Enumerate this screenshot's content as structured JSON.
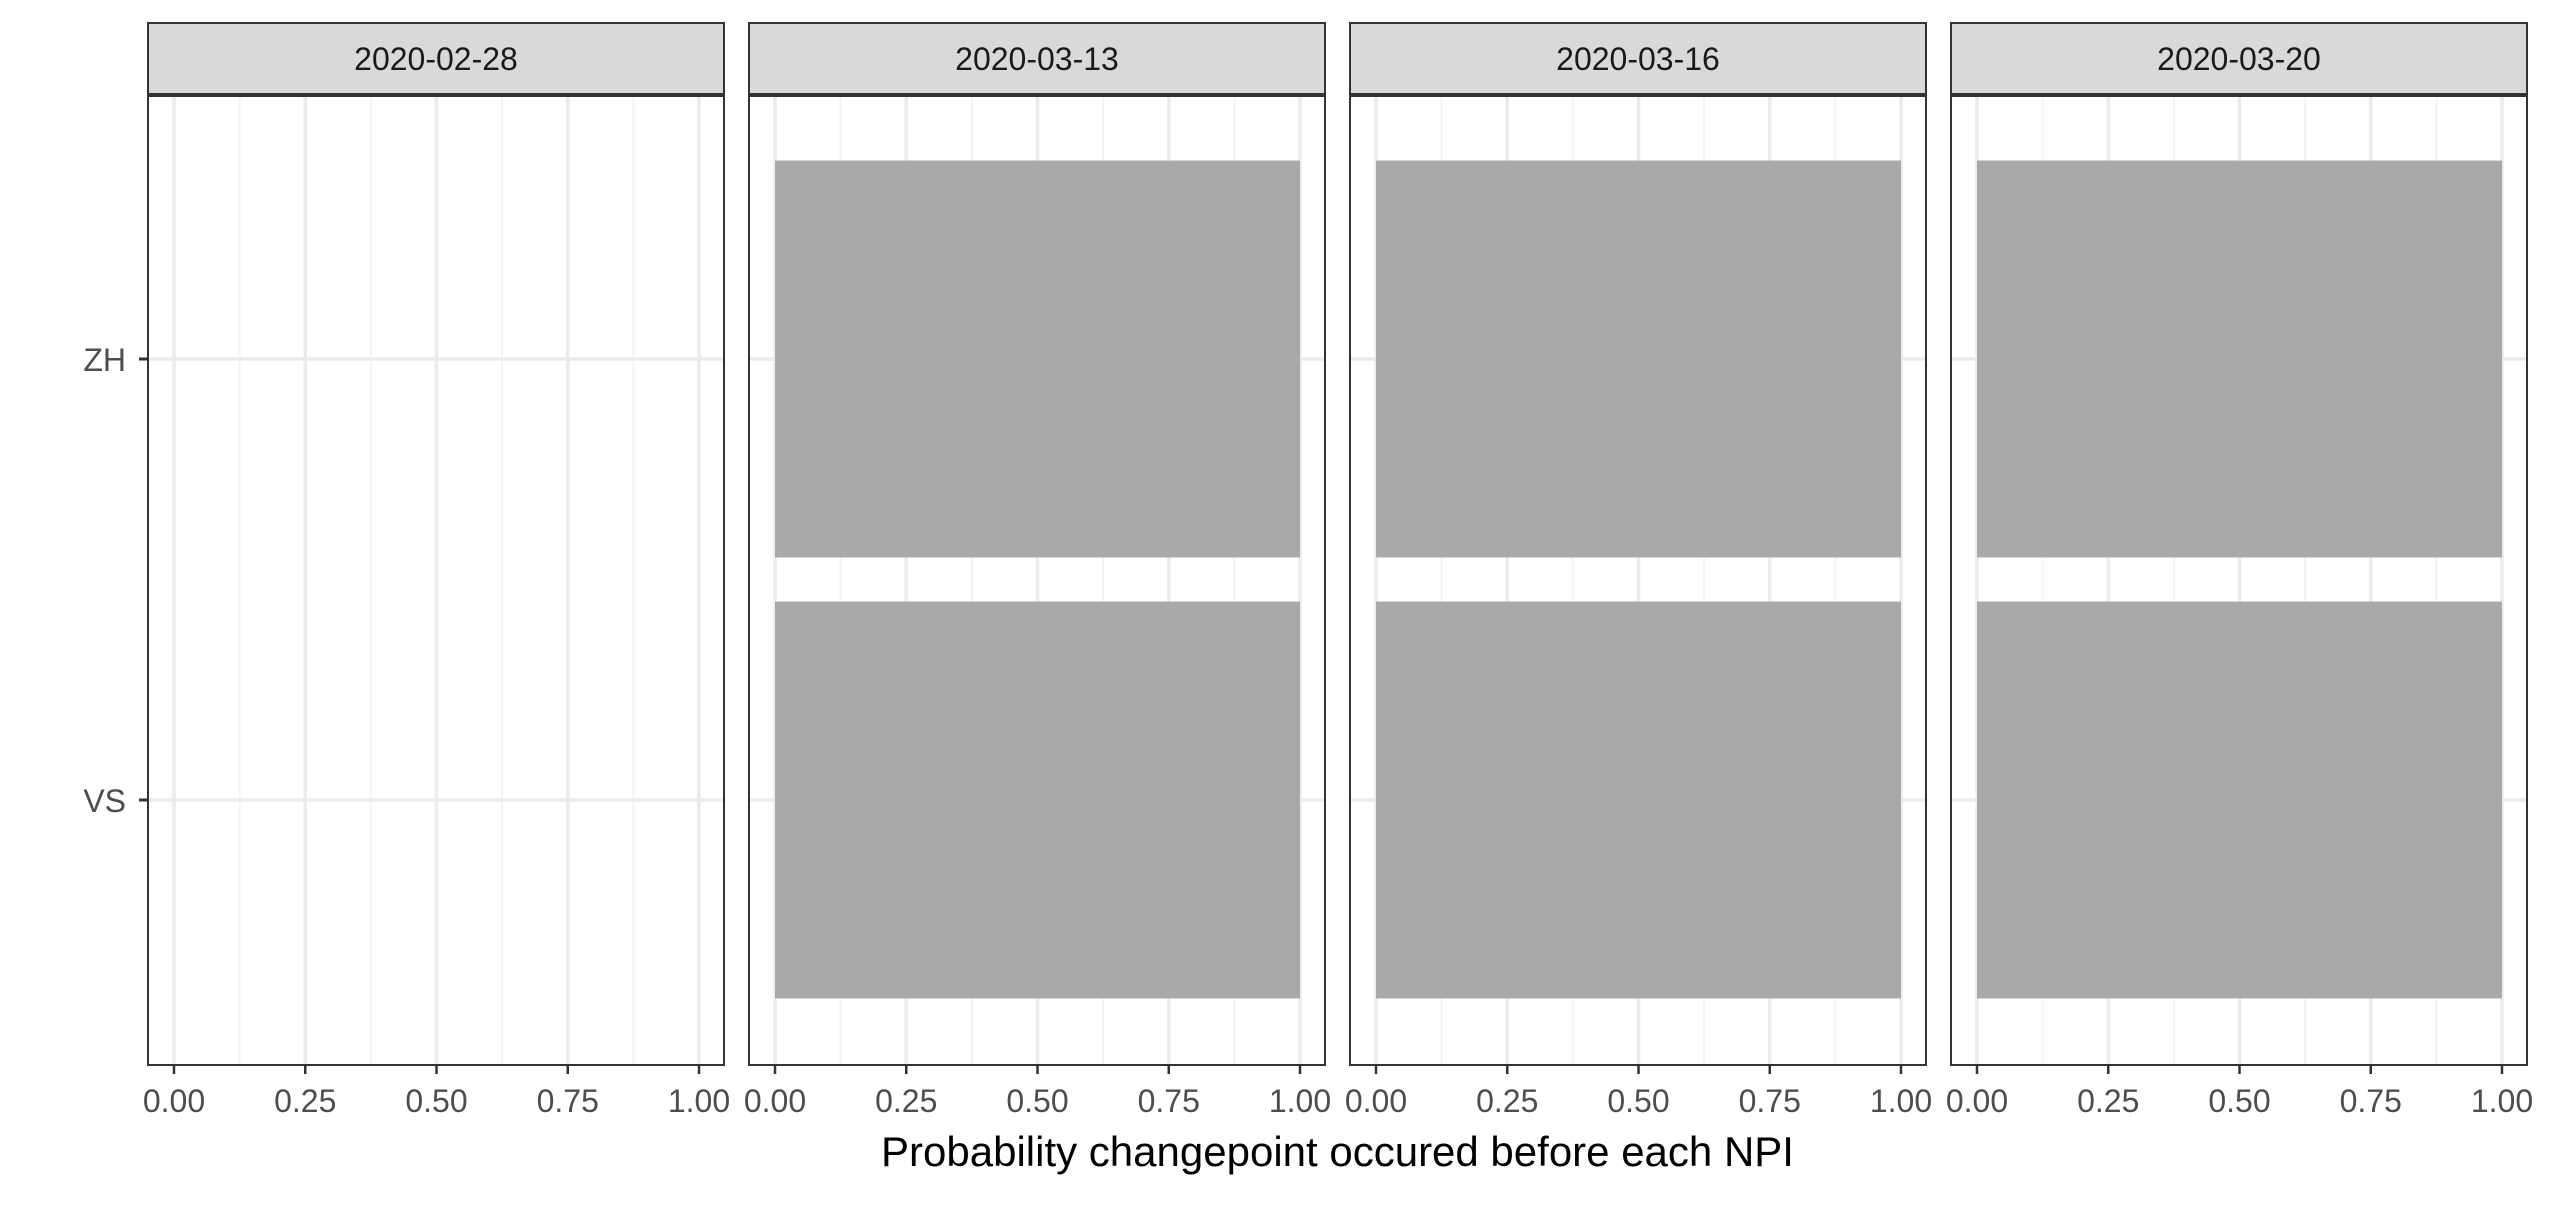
{
  "chart_data": {
    "type": "bar",
    "orientation": "horizontal",
    "facet_by": "date",
    "facets": [
      {
        "label": "2020-02-28",
        "values": {
          "ZH": 0,
          "VS": 0
        }
      },
      {
        "label": "2020-03-13",
        "values": {
          "ZH": 1,
          "VS": 1
        }
      },
      {
        "label": "2020-03-16",
        "values": {
          "ZH": 1,
          "VS": 1
        }
      },
      {
        "label": "2020-03-20",
        "values": {
          "ZH": 1,
          "VS": 1
        }
      }
    ],
    "categories": [
      "ZH",
      "VS"
    ],
    "xlabel": "Probability changepoint occured before each NPI",
    "ylabel": "",
    "xlim": [
      0,
      1
    ],
    "x_ticks": [
      "0.00",
      "0.25",
      "0.50",
      "0.75",
      "1.00"
    ],
    "grid": true,
    "legend": "none",
    "colors": {
      "bar": "#a9a9a9",
      "strip_fill": "#d9d9d9",
      "strip_border": "#333333",
      "panel_border": "#333333",
      "grid_major": "#ebebeb",
      "grid_minor": "#f3f3f3",
      "text": "#4d4d4d",
      "title": "#1a1a1a"
    }
  }
}
